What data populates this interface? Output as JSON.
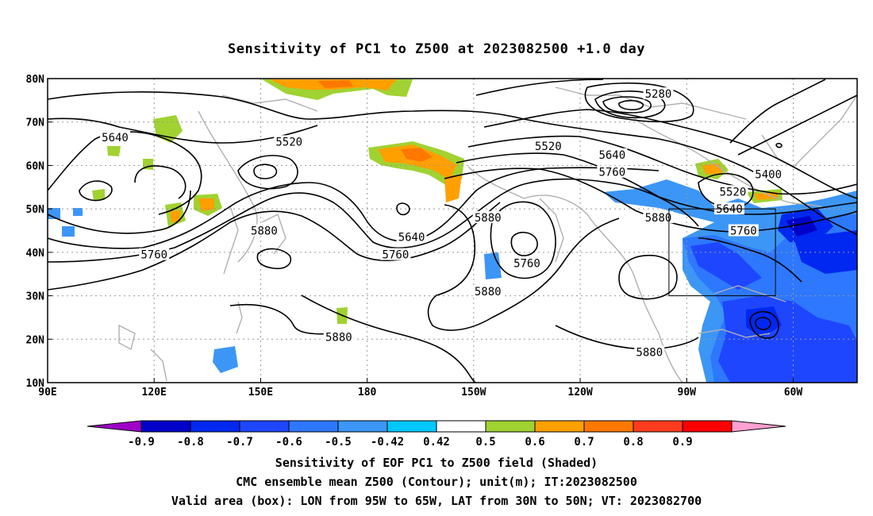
{
  "title": "Sensitivity of PC1 to Z500 at 2023082500 +1.0 day",
  "map": {
    "lat_labels": [
      "80N",
      "70N",
      "60N",
      "50N",
      "40N",
      "30N",
      "20N",
      "10N"
    ],
    "lon_labels": [
      "90E",
      "120E",
      "150E",
      "180",
      "150W",
      "120W",
      "90W",
      "60W"
    ],
    "contour_labels": [
      {
        "text": "5640",
        "lon": 109,
        "lat": 66.5
      },
      {
        "text": "5520",
        "lon": 158,
        "lat": 65.5
      },
      {
        "text": "5520",
        "lon": 231,
        "lat": 64.5
      },
      {
        "text": "5640",
        "lon": 249,
        "lat": 62.5
      },
      {
        "text": "5760",
        "lon": 249,
        "lat": 58.5
      },
      {
        "text": "5280",
        "lon": 262,
        "lat": 76.5
      },
      {
        "text": "5400",
        "lon": 293,
        "lat": 58
      },
      {
        "text": "5520",
        "lon": 283,
        "lat": 54
      },
      {
        "text": "5640",
        "lon": 282,
        "lat": 50
      },
      {
        "text": "5760",
        "lon": 286,
        "lat": 45
      },
      {
        "text": "5880",
        "lon": 262,
        "lat": 48
      },
      {
        "text": "5880",
        "lon": 151,
        "lat": 45
      },
      {
        "text": "5760",
        "lon": 120,
        "lat": 39.5
      },
      {
        "text": "5640",
        "lon": 192.5,
        "lat": 43.5
      },
      {
        "text": "5760",
        "lon": 188,
        "lat": 39.5
      },
      {
        "text": "5880",
        "lon": 214,
        "lat": 48
      },
      {
        "text": "5760",
        "lon": 225,
        "lat": 37.5
      },
      {
        "text": "5880",
        "lon": 214,
        "lat": 31
      },
      {
        "text": "5880",
        "lon": 172,
        "lat": 20.5
      },
      {
        "text": "5880",
        "lon": 259.5,
        "lat": 17
      }
    ],
    "valid_box": {
      "lon_min": 265,
      "lon_max": 295,
      "lat_min": 30,
      "lat_max": 50
    }
  },
  "colorbar": {
    "labels": [
      "-0.9",
      "-0.8",
      "-0.7",
      "-0.6",
      "-0.5",
      "-0.42",
      "0.42",
      "0.5",
      "0.6",
      "0.7",
      "0.8",
      "0.9"
    ],
    "colors": [
      "#a000c8",
      "#0000c8",
      "#0028f0",
      "#1e46ff",
      "#2d78ff",
      "#3c96f5",
      "#00c8ff",
      "#ffffff",
      "#a0d232",
      "#ffa000",
      "#ff7800",
      "#ff3c1e",
      "#ff0000",
      "#ffa0d2"
    ]
  },
  "captions": [
    "Sensitivity of EOF PC1 to Z500 field (Shaded)",
    "CMC ensemble mean Z500 (Contour); unit(m); IT:2023082500",
    "Valid area (box): LON from 95W to 65W, LAT from 30N to 50N; VT: 2023082700"
  ]
}
